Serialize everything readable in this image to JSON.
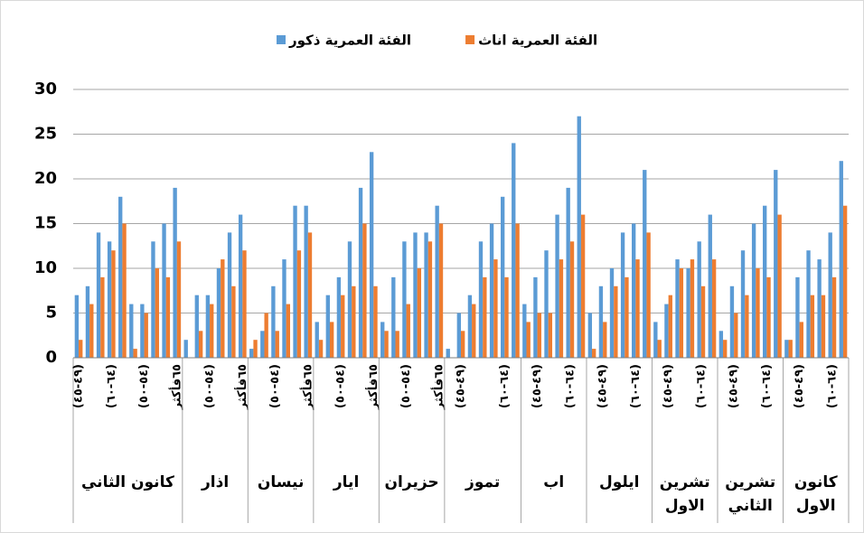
{
  "chart_data": {
    "type": "bar",
    "ylim": [
      0,
      30
    ],
    "yticks": [
      0,
      5,
      10,
      15,
      20,
      25,
      30
    ],
    "grid": true,
    "legend": "top",
    "series": [
      {
        "name": "الفئة العمرية ذكور",
        "color": "#5b9bd5",
        "values": [
          7,
          8,
          14,
          13,
          18,
          6,
          6,
          13,
          15,
          19,
          2,
          7,
          7,
          10,
          14,
          16,
          1,
          3,
          8,
          11,
          17,
          17,
          4,
          7,
          9,
          13,
          19,
          23,
          4,
          9,
          13,
          14,
          14,
          17,
          1,
          5,
          7,
          13,
          15,
          18,
          24,
          6,
          9,
          12,
          16,
          19,
          27,
          5,
          8,
          10,
          14,
          15,
          21,
          4,
          6,
          11,
          10,
          13,
          16,
          3,
          8,
          12,
          15,
          17,
          21,
          2,
          9,
          12,
          11,
          14,
          22
        ]
      },
      {
        "name": "الفئة العمرية اناث",
        "color": "#ed7d31",
        "values": [
          2,
          6,
          9,
          12,
          15,
          1,
          5,
          10,
          9,
          13,
          0,
          3,
          6,
          11,
          8,
          12,
          2,
          5,
          3,
          6,
          12,
          14,
          2,
          4,
          7,
          8,
          15,
          8,
          3,
          3,
          6,
          10,
          13,
          15,
          0,
          3,
          6,
          9,
          11,
          9,
          15,
          4,
          5,
          5,
          11,
          13,
          16,
          1,
          4,
          8,
          9,
          11,
          14,
          2,
          7,
          10,
          11,
          8,
          11,
          2,
          5,
          7,
          10,
          9,
          16,
          2,
          4,
          7,
          7,
          9,
          17
        ]
      }
    ],
    "groups": [
      {
        "name": "كانون الثاني",
        "categories": [
          "(٤٩-٤٥)",
          null,
          null,
          "(٦٤-٦٠)",
          null,
          null,
          "(٥٤-٥٠)",
          null,
          null,
          "٦٥فأكثر"
        ]
      },
      {
        "name": "اذار",
        "categories": [
          null,
          null,
          "(٥٤-٥٠)",
          null,
          null,
          "٦٥فأكثر"
        ]
      },
      {
        "name": "نيسان",
        "categories": [
          null,
          null,
          "(٥٤-٥٠)",
          null,
          null,
          "٦٥فأكثر"
        ]
      },
      {
        "name": "ايار",
        "categories": [
          null,
          null,
          "(٥٤-٥٠)",
          null,
          null,
          "٦٥فأكثر"
        ]
      },
      {
        "name": "حزيران",
        "categories": [
          null,
          null,
          "(٥٤-٥٠)",
          null,
          null,
          "٦٥فأكثر"
        ]
      },
      {
        "name": "تموز",
        "categories": [
          null,
          "(٤٩-٤٥)",
          null,
          null,
          null,
          "(٦٤-٦٠)",
          null
        ]
      },
      {
        "name": "اب",
        "categories": [
          null,
          "(٤٩-٤٥)",
          null,
          null,
          "(٦٤-٦٠)",
          null
        ]
      },
      {
        "name": "ايلول",
        "categories": [
          null,
          "(٤٩-٤٥)",
          null,
          null,
          "(٦٤-٦٠)",
          null
        ]
      },
      {
        "name": "تشرين الاول",
        "categories": [
          null,
          "(٤٩-٤٥)",
          null,
          null,
          "(٦٤-٦٠)",
          null
        ]
      },
      {
        "name": "تشرين الثاني",
        "categories": [
          null,
          "(٤٩-٤٥)",
          null,
          null,
          "(٦٤-٦٠)",
          null
        ]
      },
      {
        "name": "كانون الاول",
        "categories": [
          null,
          "(٤٩-٤٥)",
          null,
          null,
          "(٦٤-٦٠)",
          null
        ]
      }
    ]
  }
}
